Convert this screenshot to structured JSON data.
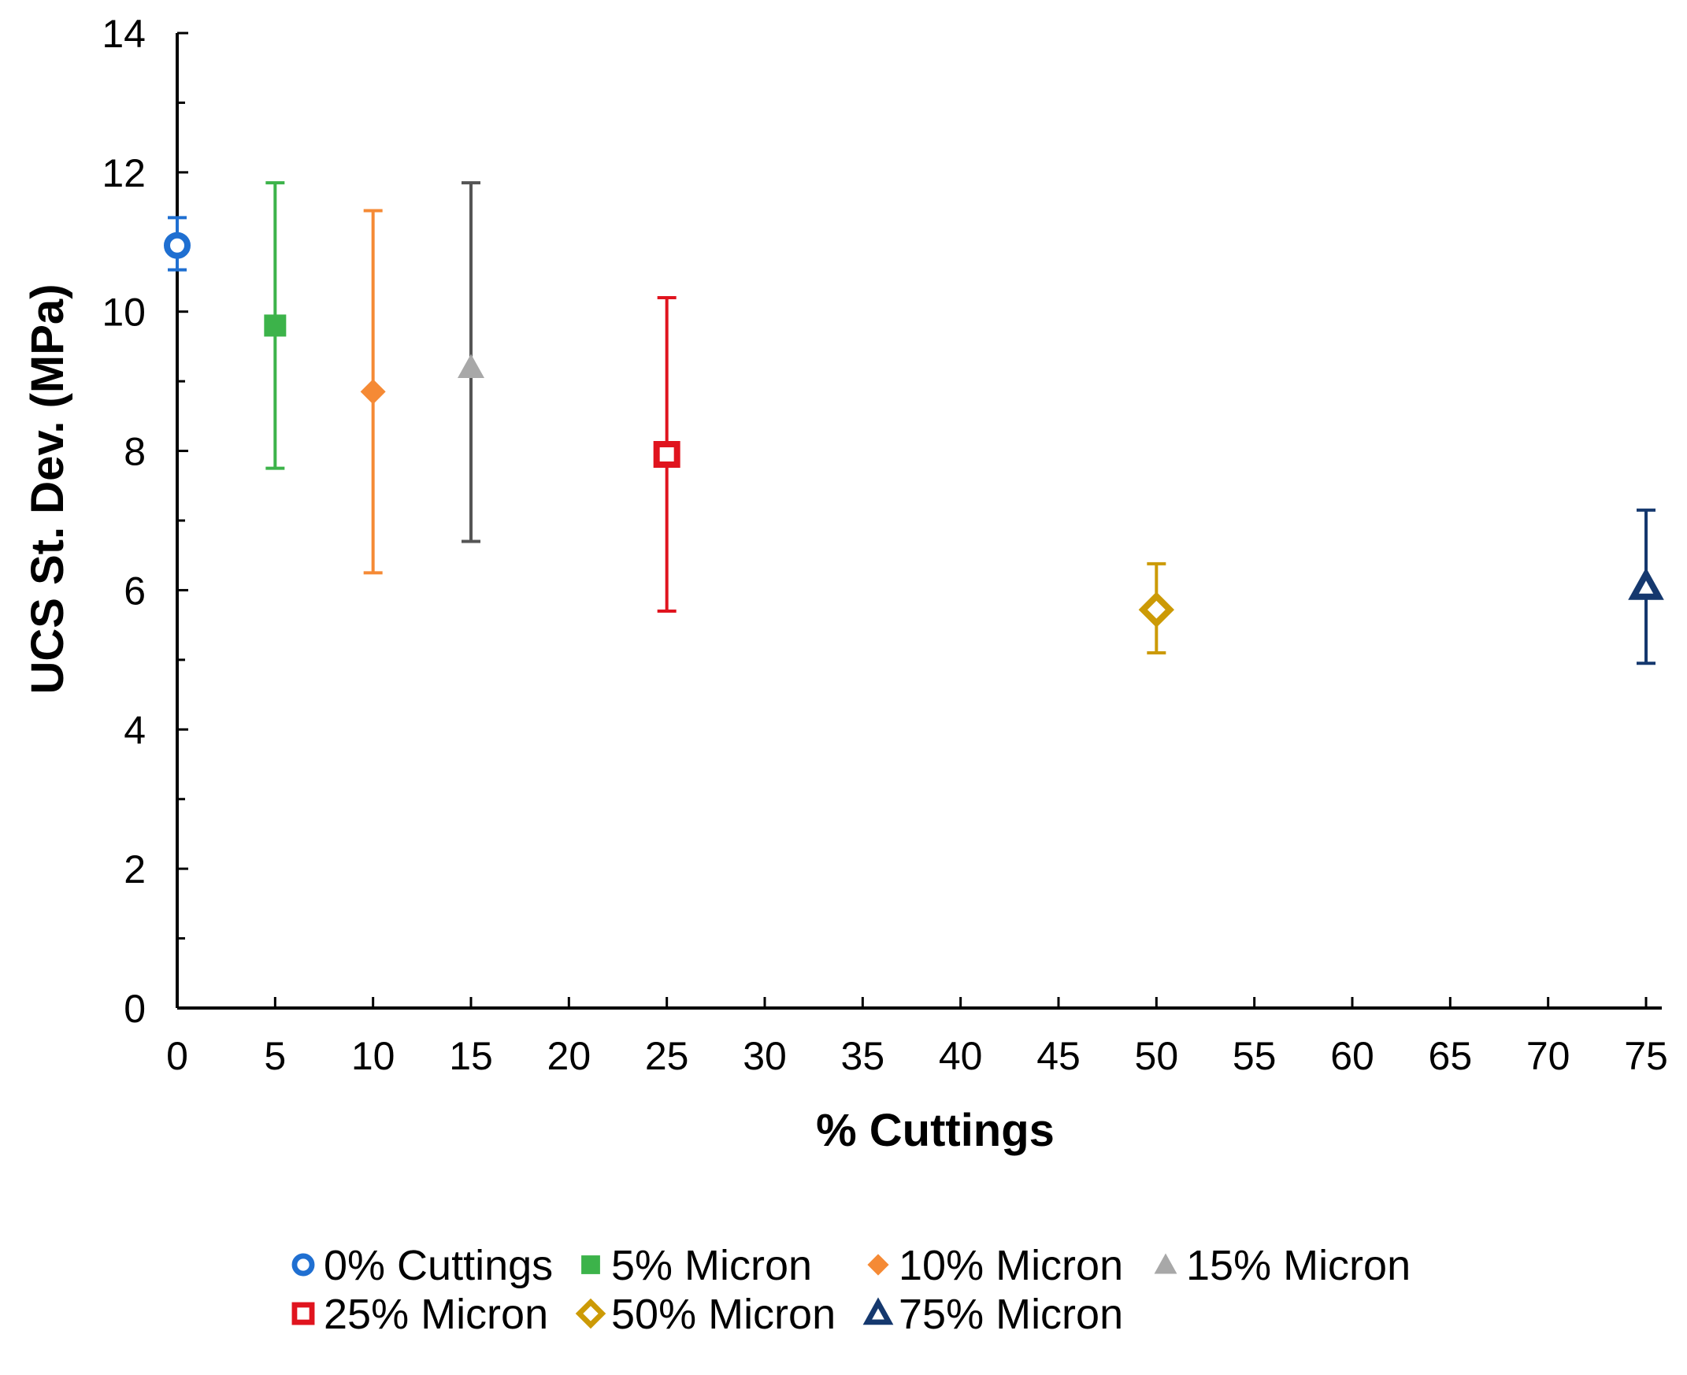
{
  "chart_data": {
    "type": "scatter",
    "title": "",
    "xlabel": "% Cuttings",
    "ylabel": "UCS St. Dev. (MPa)",
    "xlim": [
      0,
      75
    ],
    "ylim": [
      0,
      14
    ],
    "xticks": [
      0,
      5,
      10,
      15,
      20,
      25,
      30,
      35,
      40,
      45,
      50,
      55,
      60,
      65,
      70,
      75
    ],
    "yticks": [
      0,
      2,
      4,
      6,
      8,
      10,
      12,
      14
    ],
    "x_tick_labels": [
      "0",
      "5",
      "10",
      "15",
      "20",
      "25",
      "30",
      "35",
      "40",
      "45",
      "50",
      "55",
      "60",
      "65",
      "70",
      "75"
    ],
    "y_tick_labels": [
      "0",
      "2",
      "4",
      "6",
      "8",
      "10",
      "12",
      "14"
    ],
    "grid": false,
    "legend_position": "bottom",
    "series": [
      {
        "name": "0% Cuttings",
        "x": 0,
        "y": 10.95,
        "err_low": 10.6,
        "err_high": 11.35,
        "marker": "circle-open",
        "color": "#1f6fd1"
      },
      {
        "name": "5% Micron",
        "x": 5,
        "y": 9.8,
        "err_low": 7.75,
        "err_high": 11.85,
        "marker": "square-filled",
        "color": "#3cb34a"
      },
      {
        "name": "10% Micron",
        "x": 10,
        "y": 8.85,
        "err_low": 6.25,
        "err_high": 11.45,
        "marker": "diamond-filled",
        "color": "#f58a35"
      },
      {
        "name": "15% Micron",
        "x": 15,
        "y": 9.2,
        "err_low": 6.7,
        "err_high": 11.85,
        "marker": "triangle-filled",
        "color": "#a8a8a8",
        "errcolor": "#555555"
      },
      {
        "name": "25% Micron",
        "x": 25,
        "y": 7.95,
        "err_low": 5.7,
        "err_high": 10.2,
        "marker": "square-open",
        "color": "#e0141e"
      },
      {
        "name": "50% Micron",
        "x": 50,
        "y": 5.72,
        "err_low": 5.1,
        "err_high": 6.38,
        "marker": "diamond-open",
        "color": "#cc9a06"
      },
      {
        "name": "75% Micron",
        "x": 75,
        "y": 6.05,
        "err_low": 4.95,
        "err_high": 7.15,
        "marker": "triangle-open",
        "color": "#15386e"
      }
    ]
  }
}
